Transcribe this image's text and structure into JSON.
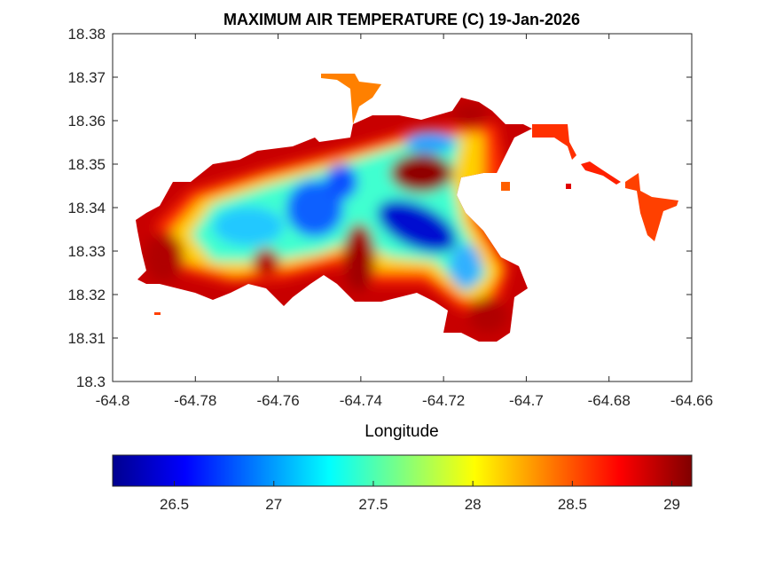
{
  "chart_data": {
    "type": "heatmap",
    "title": "MAXIMUM AIR TEMPERATURE (C) 19-Jan-2026",
    "xlabel": "Longitude",
    "ylabel": "",
    "xlim": [
      -64.8,
      -64.66
    ],
    "ylim": [
      18.3,
      18.38
    ],
    "xticks": [
      "-64.8",
      "-64.78",
      "-64.76",
      "-64.74",
      "-64.72",
      "-64.7",
      "-64.68",
      "-64.66"
    ],
    "yticks": [
      "18.3",
      "18.31",
      "18.32",
      "18.33",
      "18.34",
      "18.35",
      "18.36",
      "18.37",
      "18.38"
    ],
    "colormap": "jet",
    "colorbar": {
      "location": "bottom",
      "clim": [
        26.19,
        29.1
      ],
      "ticks": [
        "26.5",
        "27",
        "27.5",
        "28",
        "28.5",
        "29"
      ]
    },
    "grid": false,
    "region_hot_color": "#a00000",
    "region_cool_color": "#0000c8"
  }
}
